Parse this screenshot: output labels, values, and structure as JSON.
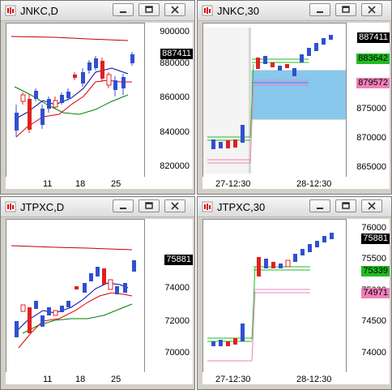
{
  "windows": [
    {
      "id": "jnkc-d",
      "title": "JNKC,D",
      "y_labels": [
        "900000",
        "880000",
        "860000",
        "840000",
        "820000"
      ],
      "price_badge": {
        "text": "887411",
        "bg": "#000000",
        "fg": "#ffffff"
      },
      "x_labels": [
        "11",
        "18",
        "25"
      ]
    },
    {
      "id": "jnkc-30",
      "title": "JNKC,30",
      "y_labels": [
        "880000",
        "875000",
        "870000",
        "865000"
      ],
      "badges": [
        {
          "text": "887411",
          "bg": "#000000",
          "fg": "#ffffff"
        },
        {
          "text": "883642",
          "bg": "#22bb22",
          "fg": "#000000"
        },
        {
          "text": "879572",
          "bg": "#f080b8",
          "fg": "#000000"
        }
      ],
      "x_labels": [
        "27-12:30",
        "28-12:30"
      ]
    },
    {
      "id": "jtpxc-d",
      "title": "JTPXC,D",
      "y_labels": [
        "74000",
        "72000",
        "70000"
      ],
      "price_badge": {
        "text": "75881",
        "bg": "#000000",
        "fg": "#ffffff"
      },
      "x_labels": [
        "11",
        "18",
        "25"
      ]
    },
    {
      "id": "jtpxc-30",
      "title": "JTPXC,30",
      "y_labels": [
        "76000",
        "75500",
        "75000",
        "74500",
        "74000"
      ],
      "badges": [
        {
          "text": "75881",
          "bg": "#000000",
          "fg": "#ffffff"
        },
        {
          "text": "75339",
          "bg": "#22bb22",
          "fg": "#000000"
        },
        {
          "text": "74971",
          "bg": "#f080b8",
          "fg": "#000000"
        }
      ],
      "x_labels": [
        "27-12:30",
        "28-12:30"
      ]
    }
  ],
  "colors": {
    "up_candle": "#3050d0",
    "down_candle": "#e02020",
    "ma_fast": "#0000aa",
    "ma_mid": "#e00000",
    "ma_slow": "#008000",
    "upper_line": "#c00000",
    "level_green": "#22bb22",
    "level_pink": "#f080b8",
    "level_blue": "#6060ff",
    "zone_fill": "#87c8ec"
  },
  "icons": [
    "chart-app-icon",
    "minimize-icon",
    "restore-icon",
    "close-icon"
  ]
}
